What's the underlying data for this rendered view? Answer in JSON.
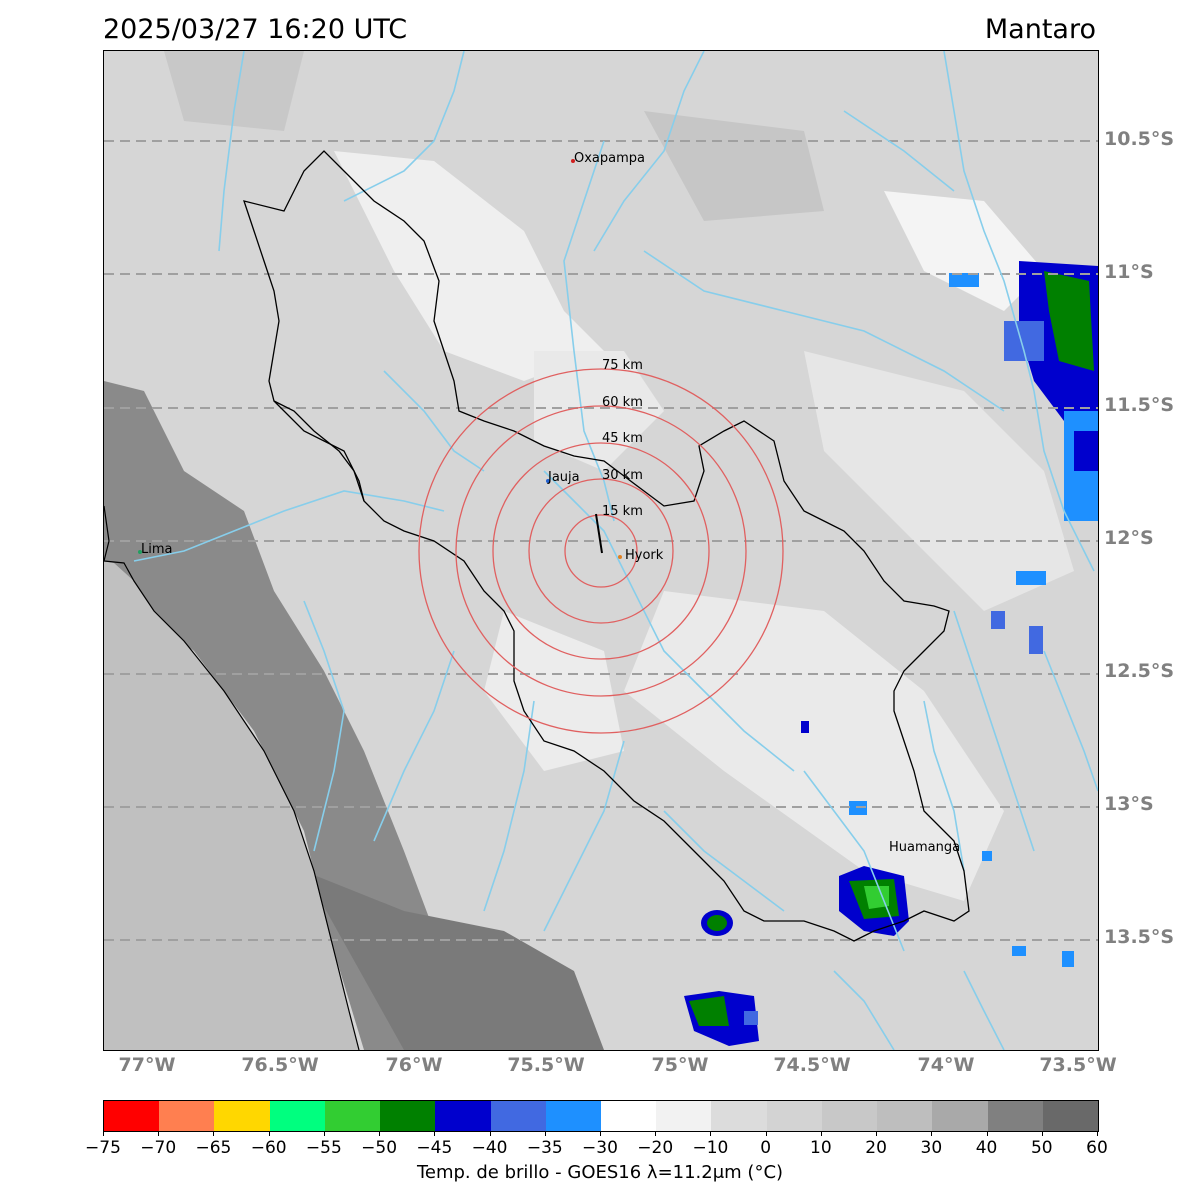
{
  "header": {
    "datetime": "2025/03/27 16:20 UTC",
    "region": "Mantaro"
  },
  "map": {
    "lat_labels": [
      "10.5°S",
      "11°S",
      "11.5°S",
      "12°S",
      "12.5°S",
      "13°S",
      "13.5°S"
    ],
    "lon_labels": [
      "77°W",
      "76.5°W",
      "76°W",
      "75.5°W",
      "75°W",
      "74.5°W",
      "74°W",
      "73.5°W"
    ],
    "cities": {
      "oxapampa": "Oxapampa",
      "jauja": "Jauja",
      "hyork": "Hyork",
      "lima": "Lima",
      "huamanga": "Huamanga"
    },
    "ring_labels": [
      "15 km",
      "30 km",
      "45 km",
      "60 km",
      "75 km"
    ],
    "colors": {
      "river": "#87ceeb",
      "ring": "#e06060",
      "ocean": "#c0c0c0",
      "grid": "#a0a0a0"
    }
  },
  "colorbar": {
    "label": "Temp. de brillo - GOES16 λ=11.2μm (°C)",
    "ticks": [
      "−75",
      "−70",
      "−65",
      "−60",
      "−55",
      "−50",
      "−45",
      "−40",
      "−35",
      "−30",
      "−20",
      "−10",
      "0",
      "10",
      "20",
      "30",
      "40",
      "50",
      "60"
    ],
    "colors": [
      "#ff0000",
      "#ff7f50",
      "#ffd700",
      "#00ff7f",
      "#32cd32",
      "#008000",
      "#0000cd",
      "#4169e1",
      "#1e90ff",
      "#ffffff",
      "#f2f2f2",
      "#dcdcdc",
      "#d3d3d3",
      "#c8c8c8",
      "#bebebe",
      "#a9a9a9",
      "#808080",
      "#696969",
      "#000000"
    ]
  }
}
